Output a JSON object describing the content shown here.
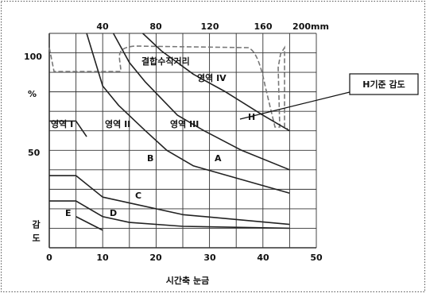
{
  "chart_data": {
    "type": "line",
    "xlabel": "시간축 눈금",
    "ylabel": "감도",
    "x_ticks": [
      "0",
      "10",
      "20",
      "30",
      "40",
      "50"
    ],
    "top_ticks": [
      "40",
      "80",
      "120",
      "160",
      "200mm"
    ],
    "y_ticks": [
      "100",
      "%",
      "50"
    ],
    "xlim": [
      0,
      50
    ],
    "ylim": [
      0,
      110
    ],
    "grid": true,
    "series": [
      {
        "name": "H",
        "points": [
          [
            17.5,
            110
          ],
          [
            21,
            101
          ],
          [
            27,
            89
          ],
          [
            33,
            80
          ],
          [
            40,
            68
          ],
          [
            45,
            60
          ]
        ]
      },
      {
        "name": "A",
        "points": [
          [
            12,
            110
          ],
          [
            15,
            95
          ],
          [
            18,
            85
          ],
          [
            24,
            68
          ],
          [
            29,
            60
          ],
          [
            36,
            50
          ],
          [
            45,
            40
          ]
        ]
      },
      {
        "name": "B",
        "points": [
          [
            7,
            110
          ],
          [
            10,
            83
          ],
          [
            13,
            73
          ],
          [
            18,
            60
          ],
          [
            22,
            50
          ],
          [
            27,
            42
          ],
          [
            45,
            28
          ]
        ]
      },
      {
        "name": "C",
        "points": [
          [
            0,
            37
          ],
          [
            5,
            37
          ],
          [
            10,
            26
          ],
          [
            15,
            23
          ],
          [
            25,
            17
          ],
          [
            45,
            12
          ]
        ]
      },
      {
        "name": "D",
        "points": [
          [
            0,
            24
          ],
          [
            5,
            24
          ],
          [
            10,
            16
          ],
          [
            15,
            13
          ],
          [
            25,
            11
          ],
          [
            45,
            10
          ]
        ]
      },
      {
        "name": "E",
        "points": [
          [
            5,
            16
          ],
          [
            10,
            9
          ]
        ]
      },
      {
        "name": "영역 I",
        "points": [
          [
            0,
            65
          ],
          [
            5,
            65
          ],
          [
            7,
            57
          ]
        ]
      }
    ],
    "annotations": {
      "region1": "영역 I",
      "region2": "영역 II",
      "region3": "영역 III",
      "region4": "영역 IV",
      "coupling": "결합수직거리",
      "callout": "H기준 감도"
    }
  }
}
